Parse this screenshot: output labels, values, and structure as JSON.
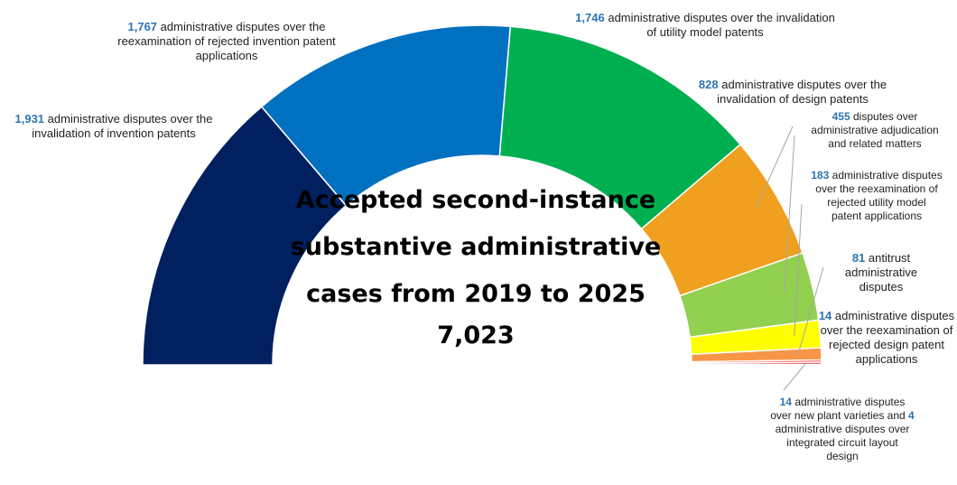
{
  "chart_data": {
    "type": "pie",
    "style": "half-donut",
    "title": "Accepted second-instance substantive administrative cases from 2019 to 2025",
    "total": "7,023",
    "slices": [
      {
        "value": 1931,
        "value_label": "1,931",
        "label": "administrative disputes over the invalidation of invention patents",
        "color": "#002060"
      },
      {
        "value": 1767,
        "value_label": "1,767",
        "label": "administrative disputes over the reexamination of rejected invention patent applications",
        "color": "#0070c0"
      },
      {
        "value": 1746,
        "value_label": "1,746",
        "label": "administrative disputes over the invalidation of utility model patents",
        "color": "#00b050"
      },
      {
        "value": 828,
        "value_label": "828",
        "label": "administrative disputes over the invalidation of design patents",
        "color": "#f0a01e"
      },
      {
        "value": 455,
        "value_label": "455",
        "label": "disputes over administrative adjudication and related matters",
        "color": "#92d050"
      },
      {
        "value": 183,
        "value_label": "183",
        "label": "administrative disputes over the reexamination of rejected utility model patent applications",
        "color": "#ffff00"
      },
      {
        "value": 81,
        "value_label": "81",
        "label": "antitrust administrative disputes",
        "color": "#f79646"
      },
      {
        "value": 14,
        "value_label": "14",
        "label": "administrative disputes over the reexamination of rejected design patent applications",
        "color": "#ff0000"
      },
      {
        "value": 14,
        "value_label": "14",
        "label": "administrative disputes over new plant varieties",
        "color": "#c00000"
      },
      {
        "value": 4,
        "value_label": "4",
        "label": "administrative disputes over integrated circuit layout design",
        "color": "#7030a0"
      }
    ],
    "extra_label_text": "and"
  }
}
